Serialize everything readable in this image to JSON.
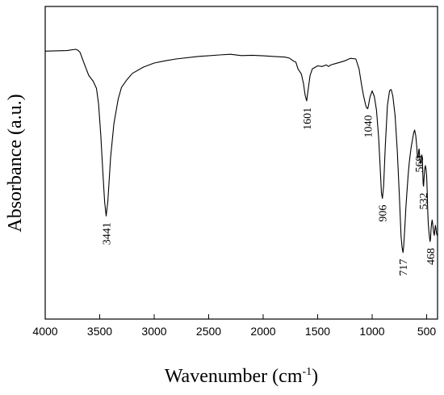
{
  "chart_data": {
    "type": "line",
    "xlabel": "Wavenumber (cm",
    "xlabel_sup": "-1",
    "xlabel_close": ")",
    "ylabel": "Absorbance (a.u.)",
    "xlim": [
      4000,
      400
    ],
    "ylim": [
      0,
      1
    ],
    "x_reversed": true,
    "grid": false,
    "xticks": [
      4000,
      3500,
      3000,
      2500,
      2000,
      1500,
      1000,
      500
    ],
    "xtick_labels": [
      "4000",
      "3500",
      "3000",
      "2500",
      "2000",
      "1500",
      "1000",
      "500"
    ],
    "line_color": "#000000",
    "series": [
      {
        "x": [
          4000,
          3800,
          3720,
          3700,
          3680,
          3640,
          3600,
          3560,
          3530,
          3510,
          3490,
          3470,
          3455,
          3441,
          3425,
          3400,
          3370,
          3330,
          3300,
          3250,
          3200,
          3100,
          3000,
          2900,
          2800,
          2600,
          2400,
          2300,
          2200,
          2100,
          2000,
          1900,
          1800,
          1760,
          1720,
          1700,
          1680,
          1650,
          1630,
          1615,
          1601,
          1590,
          1570,
          1550,
          1500,
          1460,
          1420,
          1400,
          1380,
          1340,
          1300,
          1250,
          1200,
          1150,
          1120,
          1100,
          1080,
          1060,
          1050,
          1040,
          1030,
          1020,
          1000,
          980,
          960,
          940,
          925,
          915,
          906,
          895,
          880,
          860,
          840,
          825,
          810,
          790,
          770,
          750,
          735,
          725,
          717,
          710,
          700,
          690,
          680,
          670,
          660,
          650,
          640,
          630,
          620,
          610,
          600,
          590,
          585,
          580,
          576,
          572,
          569,
          565,
          560,
          555,
          550,
          545,
          540,
          536,
          532,
          528,
          524,
          518,
          512,
          506,
          500,
          495,
          490,
          485,
          480,
          474,
          468,
          464,
          460,
          455,
          450,
          445,
          440,
          435,
          430,
          425,
          420,
          415,
          410,
          405,
          400
        ],
        "y": [
          0.857,
          0.859,
          0.863,
          0.86,
          0.853,
          0.815,
          0.779,
          0.761,
          0.738,
          0.688,
          0.59,
          0.466,
          0.375,
          0.33,
          0.377,
          0.517,
          0.625,
          0.704,
          0.741,
          0.766,
          0.786,
          0.806,
          0.819,
          0.826,
          0.832,
          0.84,
          0.845,
          0.847,
          0.843,
          0.844,
          0.842,
          0.84,
          0.838,
          0.835,
          0.825,
          0.822,
          0.8,
          0.784,
          0.754,
          0.716,
          0.698,
          0.726,
          0.779,
          0.8,
          0.81,
          0.808,
          0.813,
          0.808,
          0.813,
          0.817,
          0.821,
          0.826,
          0.834,
          0.832,
          0.8,
          0.755,
          0.716,
          0.685,
          0.675,
          0.673,
          0.69,
          0.71,
          0.73,
          0.712,
          0.668,
          0.578,
          0.477,
          0.404,
          0.386,
          0.425,
          0.549,
          0.683,
          0.731,
          0.734,
          0.714,
          0.651,
          0.54,
          0.389,
          0.265,
          0.229,
          0.213,
          0.234,
          0.294,
          0.358,
          0.41,
          0.461,
          0.499,
          0.53,
          0.554,
          0.573,
          0.594,
          0.605,
          0.587,
          0.551,
          0.52,
          0.514,
          0.525,
          0.542,
          0.544,
          0.526,
          0.504,
          0.497,
          0.507,
          0.525,
          0.518,
          0.478,
          0.432,
          0.425,
          0.451,
          0.479,
          0.491,
          0.481,
          0.458,
          0.408,
          0.349,
          0.306,
          0.283,
          0.262,
          0.248,
          0.26,
          0.286,
          0.305,
          0.317,
          0.307,
          0.289,
          0.275,
          0.268,
          0.285,
          0.3,
          0.29,
          0.275,
          0.27,
          0.265
        ]
      }
    ],
    "annotations": [
      {
        "text": "3441",
        "x": 3441,
        "y": 0.33
      },
      {
        "text": "1601",
        "x": 1601,
        "y": 0.698
      },
      {
        "text": "1040",
        "x": 1040,
        "y": 0.673
      },
      {
        "text": "906",
        "x": 906,
        "y": 0.386
      },
      {
        "text": "717",
        "x": 717,
        "y": 0.213
      },
      {
        "text": "569",
        "x": 569,
        "y": 0.544
      },
      {
        "text": "532",
        "x": 532,
        "y": 0.425
      },
      {
        "text": "468",
        "x": 468,
        "y": 0.248
      }
    ]
  }
}
